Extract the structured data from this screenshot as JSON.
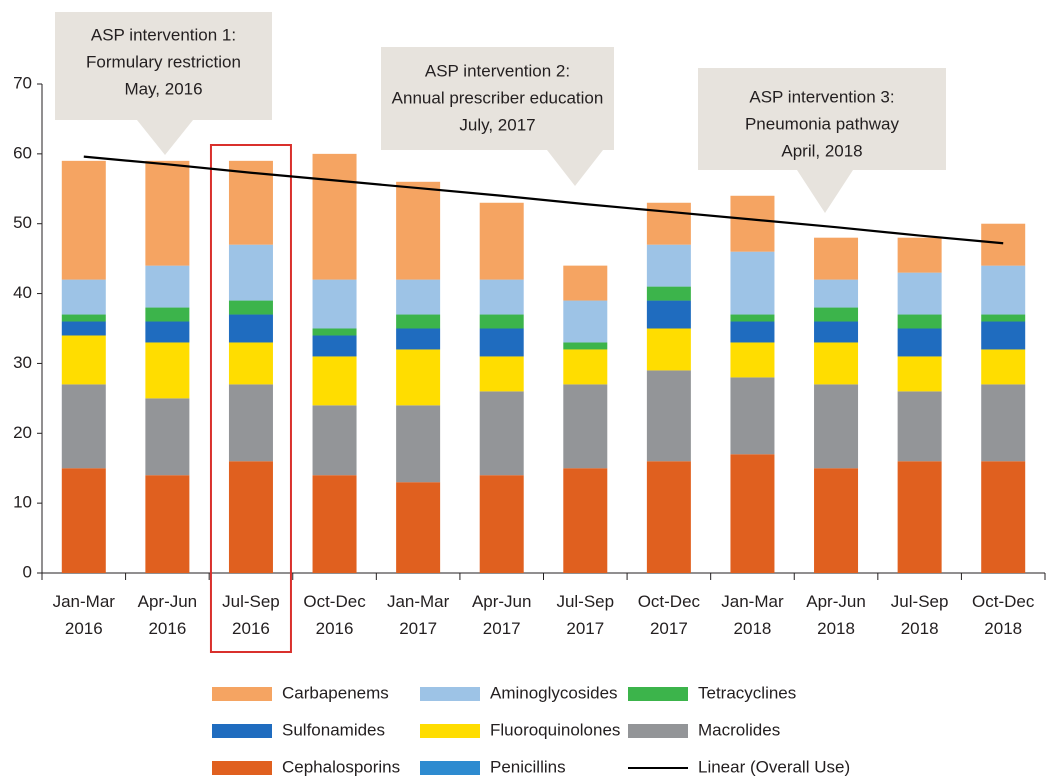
{
  "chart_data": {
    "type": "stacked_bar",
    "categories": [
      "Jan-Mar 2016",
      "Apr-Jun 2016",
      "Jul-Sep 2016",
      "Oct-Dec 2016",
      "Jan-Mar 2017",
      "Apr-Jun 2017",
      "Jul-Sep 2017",
      "Oct-Dec 2017",
      "Jan-Mar 2018",
      "Apr-Jun 2018",
      "Jul-Sep 2018",
      "Oct-Dec 2018"
    ],
    "series": [
      {
        "name": "Penicillins",
        "color": "#2e8bd0",
        "values": [
          0,
          0,
          0,
          0,
          0,
          0,
          0,
          0,
          0,
          0,
          0,
          0
        ]
      },
      {
        "name": "Cephalosporins",
        "color": "#e0601f",
        "values": [
          15,
          14,
          16,
          14,
          13,
          14,
          15,
          16,
          17,
          15,
          16,
          16
        ]
      },
      {
        "name": "Macrolides",
        "color": "#939598",
        "values": [
          12,
          11,
          11,
          10,
          11,
          12,
          12,
          13,
          11,
          12,
          10,
          11
        ]
      },
      {
        "name": "Fluoroquinolones",
        "color": "#ffdd00",
        "values": [
          7,
          8,
          6,
          7,
          8,
          5,
          5,
          6,
          5,
          6,
          5,
          5
        ]
      },
      {
        "name": "Sulfonamides",
        "color": "#1f6cbf",
        "values": [
          2,
          3,
          4,
          3,
          3,
          4,
          0,
          4,
          3,
          3,
          4,
          4
        ]
      },
      {
        "name": "Tetracyclines",
        "color": "#3cb44b",
        "values": [
          1,
          2,
          2,
          1,
          2,
          2,
          1,
          2,
          1,
          2,
          2,
          1
        ]
      },
      {
        "name": "Aminoglycosides",
        "color": "#9dc3e6",
        "values": [
          5,
          6,
          8,
          7,
          5,
          5,
          6,
          6,
          9,
          4,
          6,
          7
        ]
      },
      {
        "name": "Carbapenems",
        "color": "#f5a462",
        "values": [
          17,
          15,
          12,
          18,
          14,
          11,
          5,
          6,
          8,
          6,
          5,
          6
        ]
      }
    ],
    "trend": {
      "name": "Linear (Overall Use)",
      "color": "#000000",
      "values": [
        59.6,
        58.5,
        57.3,
        56.2,
        55.1,
        54.0,
        52.8,
        51.7,
        50.6,
        49.5,
        48.3,
        47.2
      ]
    },
    "ylim": [
      0,
      70
    ],
    "yticks": [
      0,
      10,
      20,
      30,
      40,
      50,
      60,
      70
    ],
    "grid": false,
    "highlight": {
      "category": "Jul-Sep 2016",
      "color": "#d9302c"
    },
    "annotations": [
      {
        "lines": [
          "ASP intervention 1:",
          "Formulary restriction",
          "May, 2016"
        ]
      },
      {
        "lines": [
          "ASP intervention 2:",
          "Annual prescriber education",
          "July, 2017"
        ]
      },
      {
        "lines": [
          "ASP intervention 3:",
          "Pneumonia pathway",
          "April, 2018"
        ]
      }
    ]
  }
}
